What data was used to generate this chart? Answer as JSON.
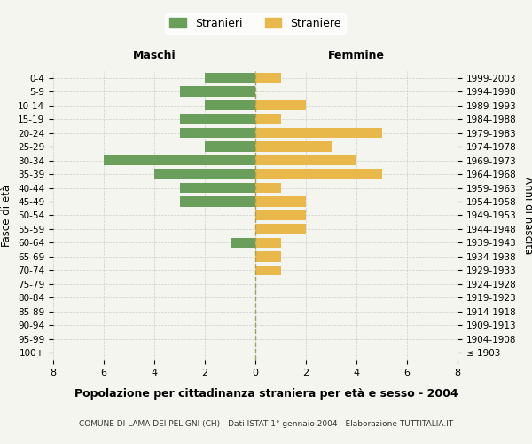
{
  "age_groups": [
    "100+",
    "95-99",
    "90-94",
    "85-89",
    "80-84",
    "75-79",
    "70-74",
    "65-69",
    "60-64",
    "55-59",
    "50-54",
    "45-49",
    "40-44",
    "35-39",
    "30-34",
    "25-29",
    "20-24",
    "15-19",
    "10-14",
    "5-9",
    "0-4"
  ],
  "birth_years": [
    "≤ 1903",
    "1904-1908",
    "1909-1913",
    "1914-1918",
    "1919-1923",
    "1924-1928",
    "1929-1933",
    "1934-1938",
    "1939-1943",
    "1944-1948",
    "1949-1953",
    "1954-1958",
    "1959-1963",
    "1964-1968",
    "1969-1973",
    "1974-1978",
    "1979-1983",
    "1984-1988",
    "1989-1993",
    "1994-1998",
    "1999-2003"
  ],
  "maschi": [
    0,
    0,
    0,
    0,
    0,
    0,
    0,
    0,
    1,
    0,
    0,
    3,
    3,
    4,
    6,
    2,
    3,
    3,
    2,
    3,
    2
  ],
  "femmine": [
    0,
    0,
    0,
    0,
    0,
    0,
    1,
    1,
    1,
    2,
    2,
    2,
    1,
    5,
    4,
    3,
    5,
    1,
    2,
    0,
    1
  ],
  "color_maschi": "#6a9e5b",
  "color_femmine": "#e8b84b",
  "title_main": "Popolazione per cittadinanza straniera per età e sesso - 2004",
  "title_sub": "COMUNE DI LAMA DEI PELIGNI (CH) - Dati ISTAT 1° gennaio 2004 - Elaborazione TUTTITALIA.IT",
  "label_maschi": "Maschi",
  "label_femmine": "Femmine",
  "legend_stranieri": "Stranieri",
  "legend_straniere": "Straniere",
  "ylabel_left": "Fasce di età",
  "ylabel_right": "Anni di nascita",
  "xlim": 8,
  "bg_color": "#f5f5f0",
  "grid_color": "#cccccc",
  "dashed_line_color": "#a0a060"
}
